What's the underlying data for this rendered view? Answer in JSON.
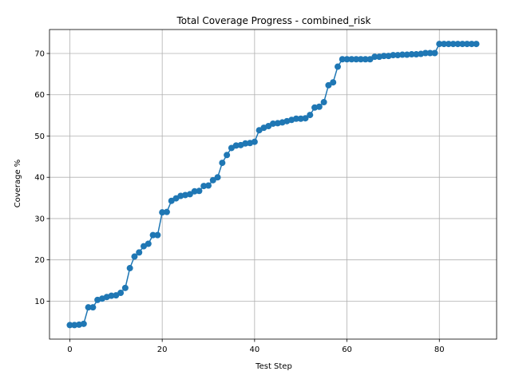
{
  "chart_data": {
    "type": "line",
    "title": "Total Coverage Progress - combined_risk",
    "xlabel": "Test Step",
    "ylabel": "Coverage %",
    "xlim": [
      -4.4,
      92.4
    ],
    "ylim": [
      0.8,
      75.8
    ],
    "xticks": [
      0,
      20,
      40,
      60,
      80
    ],
    "yticks": [
      10,
      20,
      30,
      40,
      50,
      60,
      70
    ],
    "grid": true,
    "marker": "circle",
    "color": "#1f77b4",
    "series": [
      {
        "x": [
          0,
          1,
          2,
          3,
          4,
          5,
          6,
          7,
          8,
          9,
          10,
          11,
          12,
          13,
          14,
          15,
          16,
          17,
          18,
          19,
          20,
          21,
          22,
          23,
          24,
          25,
          26,
          27,
          28,
          29,
          30,
          31,
          32,
          33,
          34,
          35,
          36,
          37,
          38,
          39,
          40,
          41,
          42,
          43,
          44,
          45,
          46,
          47,
          48,
          49,
          50,
          51,
          52,
          53,
          54,
          55,
          56,
          57,
          58,
          59,
          60,
          61,
          62,
          63,
          64,
          65,
          66,
          67,
          68,
          69,
          70,
          71,
          72,
          73,
          74,
          75,
          76,
          77,
          78,
          79,
          80,
          81,
          82,
          83,
          84,
          85,
          86,
          87,
          88
        ],
        "y": [
          4.2,
          4.2,
          4.3,
          4.5,
          8.5,
          8.5,
          10.3,
          10.6,
          11.0,
          11.3,
          11.4,
          12.0,
          13.2,
          18.0,
          20.8,
          21.8,
          23.3,
          23.9,
          26.0,
          26.0,
          31.5,
          31.6,
          34.3,
          34.9,
          35.5,
          35.7,
          35.9,
          36.6,
          36.7,
          37.9,
          38.0,
          39.3,
          40.0,
          43.5,
          45.4,
          47.1,
          47.7,
          47.8,
          48.2,
          48.3,
          48.6,
          51.4,
          52.0,
          52.4,
          53.0,
          53.1,
          53.3,
          53.6,
          53.9,
          54.2,
          54.2,
          54.3,
          55.1,
          56.9,
          57.1,
          58.2,
          62.3,
          63.0,
          66.8,
          68.6,
          68.6,
          68.6,
          68.6,
          68.6,
          68.6,
          68.6,
          69.2,
          69.2,
          69.4,
          69.4,
          69.6,
          69.6,
          69.7,
          69.7,
          69.8,
          69.8,
          69.9,
          70.1,
          70.1,
          70.1,
          72.3,
          72.3,
          72.3,
          72.3,
          72.3,
          72.3,
          72.3,
          72.3,
          72.3
        ]
      }
    ]
  }
}
